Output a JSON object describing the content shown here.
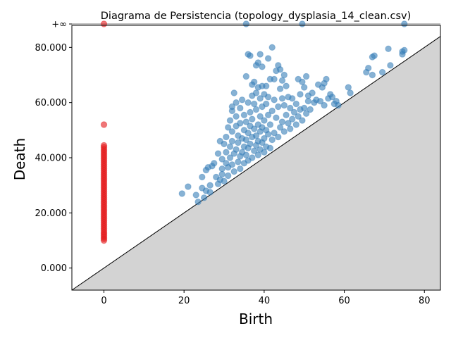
{
  "chart_data": {
    "type": "scatter",
    "title": "Diagrama de Persistencia (topology_dysplasia_14_clean.csv)",
    "xlabel": "Birth",
    "ylabel": "Death",
    "xlim": [
      -8,
      84
    ],
    "ylim": [
      -8,
      88
    ],
    "x_ticks": [
      0,
      20,
      40,
      60,
      80
    ],
    "x_tick_labels": [
      "0",
      "20",
      "40",
      "60",
      "80"
    ],
    "y_ticks": [
      0,
      20,
      40,
      60,
      80
    ],
    "y_tick_labels": [
      "0.000",
      "20.000",
      "40.000",
      "60.000",
      "80.000"
    ],
    "infinity_level": 88.5,
    "infinity_label": "+∞",
    "colors": {
      "h0": "#e41a1c",
      "h1": "#377eb8",
      "diagonal_fill": "#d3d3d3",
      "infinity_line": "#808080"
    },
    "series": [
      {
        "dimension": 0,
        "color": "#e41a1c",
        "points": [
          [
            0,
            10.0
          ],
          [
            0,
            10.6
          ],
          [
            0,
            11.2
          ],
          [
            0,
            11.8
          ],
          [
            0,
            12.4
          ],
          [
            0,
            13.0
          ],
          [
            0,
            13.7
          ],
          [
            0,
            14.4
          ],
          [
            0,
            15.1
          ],
          [
            0,
            15.8
          ],
          [
            0,
            16.5
          ],
          [
            0,
            17.2
          ],
          [
            0,
            17.9
          ],
          [
            0,
            18.6
          ],
          [
            0,
            19.3
          ],
          [
            0,
            20.0
          ],
          [
            0,
            20.7
          ],
          [
            0,
            21.4
          ],
          [
            0,
            22.1
          ],
          [
            0,
            22.8
          ],
          [
            0,
            23.5
          ],
          [
            0,
            24.2
          ],
          [
            0,
            24.9
          ],
          [
            0,
            25.6
          ],
          [
            0,
            26.3
          ],
          [
            0,
            27.0
          ],
          [
            0,
            27.7
          ],
          [
            0,
            28.4
          ],
          [
            0,
            29.1
          ],
          [
            0,
            29.8
          ],
          [
            0,
            30.5
          ],
          [
            0,
            31.2
          ],
          [
            0,
            31.9
          ],
          [
            0,
            32.6
          ],
          [
            0,
            33.3
          ],
          [
            0,
            34.0
          ],
          [
            0,
            34.7
          ],
          [
            0,
            35.4
          ],
          [
            0,
            36.1
          ],
          [
            0,
            36.8
          ],
          [
            0,
            37.5
          ],
          [
            0,
            38.2
          ],
          [
            0,
            38.9
          ],
          [
            0,
            39.6
          ],
          [
            0,
            40.3
          ],
          [
            0,
            41.0
          ],
          [
            0,
            41.7
          ],
          [
            0,
            42.4
          ],
          [
            0,
            43.1
          ],
          [
            0,
            43.8
          ],
          [
            0,
            44.5
          ],
          [
            0,
            52.0
          ]
        ],
        "infinite_births": [
          0
        ]
      },
      {
        "dimension": 1,
        "color": "#377eb8",
        "points": [
          [
            19.5,
            27.0
          ],
          [
            21.0,
            29.5
          ],
          [
            23.0,
            26.5
          ],
          [
            23.5,
            24.0
          ],
          [
            24.5,
            29.0
          ],
          [
            24.5,
            33.0
          ],
          [
            25.0,
            25.5
          ],
          [
            25.5,
            28.0
          ],
          [
            25.5,
            35.5
          ],
          [
            26.0,
            36.5
          ],
          [
            26.5,
            27.5
          ],
          [
            26.5,
            30.0
          ],
          [
            27.0,
            37.0
          ],
          [
            27.5,
            38.0
          ],
          [
            28.0,
            33.0
          ],
          [
            28.5,
            30.5
          ],
          [
            28.5,
            41.5
          ],
          [
            29.0,
            46.0
          ],
          [
            29.0,
            32.0
          ],
          [
            29.5,
            34.0
          ],
          [
            29.5,
            36.0
          ],
          [
            29.5,
            39.5
          ],
          [
            30.0,
            45.0
          ],
          [
            30.0,
            31.5
          ],
          [
            30.5,
            38.0
          ],
          [
            30.5,
            42.0
          ],
          [
            30.5,
            47.5
          ],
          [
            31.0,
            51.0
          ],
          [
            31.0,
            33.5
          ],
          [
            31.0,
            36.5
          ],
          [
            31.5,
            40.0
          ],
          [
            31.5,
            44.0
          ],
          [
            31.5,
            53.5
          ],
          [
            32.0,
            37.5
          ],
          [
            32.0,
            46.0
          ],
          [
            32.0,
            49.5
          ],
          [
            32.0,
            57.0
          ],
          [
            32.0,
            58.5
          ],
          [
            32.5,
            63.5
          ],
          [
            32.5,
            35.0
          ],
          [
            32.5,
            41.5
          ],
          [
            33.0,
            43.0
          ],
          [
            33.0,
            51.5
          ],
          [
            33.0,
            55.0
          ],
          [
            33.0,
            60.0
          ],
          [
            33.5,
            38.5
          ],
          [
            33.5,
            45.5
          ],
          [
            33.5,
            48.0
          ],
          [
            34.0,
            36.0
          ],
          [
            34.0,
            40.5
          ],
          [
            34.0,
            52.5
          ],
          [
            34.0,
            58.0
          ],
          [
            34.5,
            61.0
          ],
          [
            34.5,
            42.0
          ],
          [
            34.5,
            47.0
          ],
          [
            35.0,
            38.0
          ],
          [
            35.0,
            44.0
          ],
          [
            35.0,
            50.0
          ],
          [
            35.0,
            55.5
          ],
          [
            35.5,
            69.5
          ],
          [
            35.5,
            41.0
          ],
          [
            35.5,
            46.5
          ],
          [
            35.5,
            53.0
          ],
          [
            36.0,
            77.5
          ],
          [
            36.0,
            60.0
          ],
          [
            36.0,
            39.0
          ],
          [
            36.0,
            43.5
          ],
          [
            36.0,
            49.0
          ],
          [
            36.5,
            77.0
          ],
          [
            36.5,
            56.5
          ],
          [
            36.5,
            45.0
          ],
          [
            36.5,
            51.5
          ],
          [
            37.0,
            66.5
          ],
          [
            37.0,
            62.5
          ],
          [
            37.0,
            40.0
          ],
          [
            37.0,
            47.5
          ],
          [
            37.0,
            54.0
          ],
          [
            37.5,
            67.5
          ],
          [
            37.5,
            59.5
          ],
          [
            37.5,
            42.5
          ],
          [
            37.5,
            50.5
          ],
          [
            38.0,
            73.5
          ],
          [
            38.0,
            63.5
          ],
          [
            38.0,
            44.5
          ],
          [
            38.0,
            48.0
          ],
          [
            38.0,
            57.5
          ],
          [
            38.5,
            74.5
          ],
          [
            38.5,
            65.5
          ],
          [
            38.5,
            41.0
          ],
          [
            38.5,
            46.0
          ],
          [
            38.5,
            52.0
          ],
          [
            39.0,
            77.5
          ],
          [
            39.0,
            61.5
          ],
          [
            39.0,
            43.0
          ],
          [
            39.0,
            49.5
          ],
          [
            39.0,
            55.0
          ],
          [
            39.5,
            73.0
          ],
          [
            39.5,
            66.0
          ],
          [
            39.5,
            45.5
          ],
          [
            39.5,
            51.0
          ],
          [
            39.5,
            58.5
          ],
          [
            40.0,
            63.0
          ],
          [
            40.0,
            42.0
          ],
          [
            40.0,
            47.0
          ],
          [
            40.0,
            53.5
          ],
          [
            40.5,
            66.0
          ],
          [
            40.5,
            59.5
          ],
          [
            40.5,
            44.0
          ],
          [
            40.5,
            50.0
          ],
          [
            41.0,
            76.0
          ],
          [
            41.0,
            62.0
          ],
          [
            41.0,
            48.5
          ],
          [
            41.0,
            55.5
          ],
          [
            41.5,
            68.5
          ],
          [
            41.5,
            43.5
          ],
          [
            41.5,
            52.0
          ],
          [
            42.0,
            80.0
          ],
          [
            42.0,
            57.0
          ],
          [
            42.0,
            46.5
          ],
          [
            42.5,
            68.5
          ],
          [
            42.5,
            61.0
          ],
          [
            42.5,
            49.0
          ],
          [
            43.0,
            71.5
          ],
          [
            43.0,
            54.5
          ],
          [
            43.5,
            73.5
          ],
          [
            43.5,
            58.5
          ],
          [
            43.5,
            47.5
          ],
          [
            44.0,
            72.0
          ],
          [
            44.0,
            65.0
          ],
          [
            44.0,
            51.0
          ],
          [
            44.5,
            68.0
          ],
          [
            44.5,
            61.5
          ],
          [
            44.5,
            53.0
          ],
          [
            45.0,
            70.0
          ],
          [
            45.0,
            59.0
          ],
          [
            45.0,
            49.5
          ],
          [
            45.5,
            66.0
          ],
          [
            45.5,
            55.5
          ],
          [
            46.0,
            62.0
          ],
          [
            46.0,
            52.5
          ],
          [
            46.5,
            58.0
          ],
          [
            46.5,
            50.5
          ],
          [
            47.0,
            61.5
          ],
          [
            47.0,
            54.0
          ],
          [
            47.5,
            56.5
          ],
          [
            48.0,
            59.5
          ],
          [
            48.0,
            52.0
          ],
          [
            48.5,
            68.5
          ],
          [
            48.5,
            55.0
          ],
          [
            49.0,
            63.0
          ],
          [
            49.0,
            57.5
          ],
          [
            49.5,
            67.5
          ],
          [
            49.5,
            53.5
          ],
          [
            50.0,
            65.5
          ],
          [
            50.0,
            58.0
          ],
          [
            50.5,
            69.5
          ],
          [
            50.5,
            56.0
          ],
          [
            51.0,
            62.5
          ],
          [
            51.0,
            60.5
          ],
          [
            51.5,
            57.5
          ],
          [
            52.0,
            63.5
          ],
          [
            52.5,
            60.0
          ],
          [
            53.0,
            61.0
          ],
          [
            53.5,
            66.5
          ],
          [
            54.0,
            60.5
          ],
          [
            54.5,
            65.5
          ],
          [
            55.0,
            67.0
          ],
          [
            55.0,
            59.0
          ],
          [
            55.5,
            68.5
          ],
          [
            56.0,
            61.5
          ],
          [
            56.5,
            63.0
          ],
          [
            57.0,
            62.0
          ],
          [
            57.5,
            59.5
          ],
          [
            58.0,
            60.5
          ],
          [
            58.5,
            59.0
          ],
          [
            61.0,
            65.5
          ],
          [
            61.5,
            63.5
          ],
          [
            65.5,
            71.0
          ],
          [
            66.0,
            72.5
          ],
          [
            67.0,
            70.0
          ],
          [
            67.0,
            76.5
          ],
          [
            67.5,
            77.0
          ],
          [
            69.5,
            71.0
          ],
          [
            71.0,
            79.5
          ],
          [
            71.5,
            73.5
          ],
          [
            74.5,
            77.5
          ],
          [
            74.5,
            78.5
          ],
          [
            75.0,
            79.0
          ]
        ],
        "infinite_births": [
          35.5,
          49.5,
          75.0
        ]
      }
    ]
  }
}
